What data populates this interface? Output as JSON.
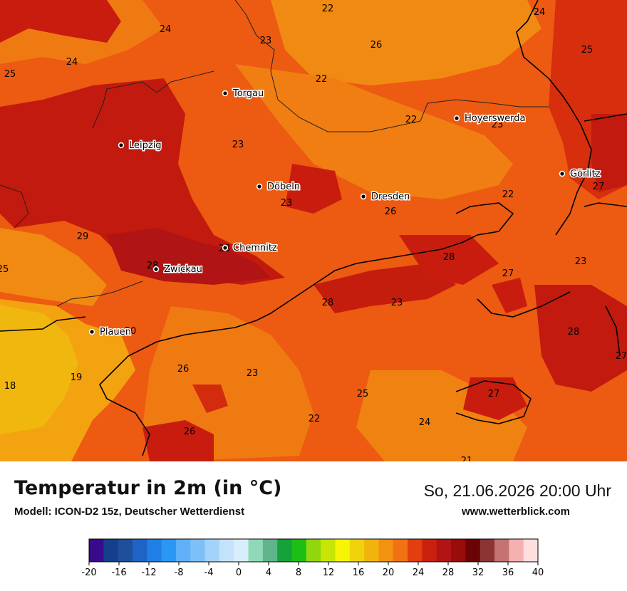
{
  "title": "Temperatur in 2m (in °C)",
  "model": "Modell: ICON-D2 15z, Deutscher Wetterdienst",
  "datetime": "So, 21.06.2026 20:00 Uhr",
  "website": "www.wetterblick.com",
  "cities": [
    {
      "name": "Torgau"
    },
    {
      "name": "Leipzig"
    },
    {
      "name": "Döbeln"
    },
    {
      "name": "Dresden"
    },
    {
      "name": "Hoyerswerda"
    },
    {
      "name": "Görlitz"
    },
    {
      "name": "Chemnitz"
    },
    {
      "name": "Zwickau"
    },
    {
      "name": "Plauen"
    }
  ],
  "temperature_labels": [
    "22",
    "24",
    "25",
    "24",
    "23",
    "26",
    "25",
    "24",
    "22",
    "22",
    "23",
    "23",
    "27",
    "23",
    "26",
    "22",
    "29",
    "28",
    "28",
    "25",
    "27",
    "23",
    "28",
    "23",
    "28",
    "20",
    "27",
    "18",
    "19",
    "26",
    "23",
    "25",
    "27",
    "22",
    "24",
    "26",
    "21",
    "28"
  ],
  "legend": {
    "ticks": [
      "-20",
      "-16",
      "-12",
      "-8",
      "-4",
      "0",
      "4",
      "8",
      "12",
      "16",
      "20",
      "24",
      "28",
      "32",
      "36",
      "40"
    ],
    "colors": [
      "#3a0a8c",
      "#153f8c",
      "#1f4f9a",
      "#1e63c5",
      "#1f7fe6",
      "#2b97f5",
      "#5fb0f7",
      "#7dc0f8",
      "#a3d3fa",
      "#c4e3fb",
      "#d9eefc",
      "#8fd8b8",
      "#5fb48a",
      "#16a23a",
      "#1cc014",
      "#92d60d",
      "#c8e606",
      "#f5f505",
      "#f0d30b",
      "#f2b40c",
      "#f29210",
      "#f07212",
      "#e43d0f",
      "#c9200e",
      "#b01414",
      "#9a0b0b",
      "#6a0303",
      "#8c3434",
      "#c47272",
      "#f5b0b0",
      "#ffdede"
    ]
  }
}
